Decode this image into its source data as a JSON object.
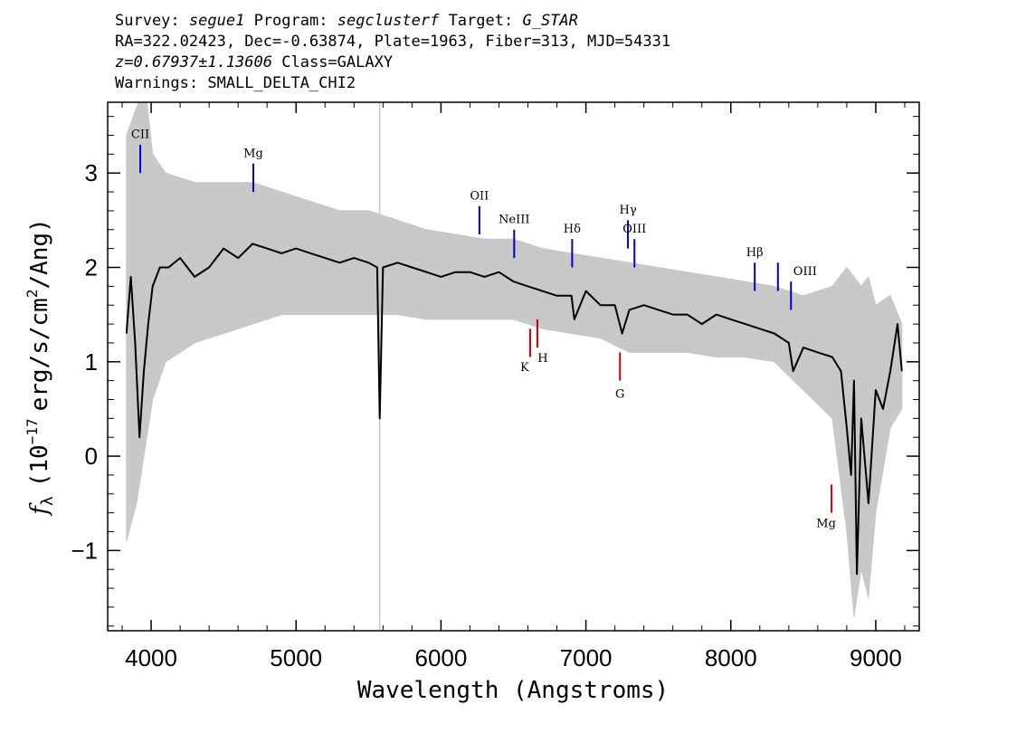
{
  "header": {
    "line1": {
      "survey_label": "Survey:",
      "survey": "segue1",
      "program_label": "Program:",
      "program": "segclusterf",
      "target_label": "Target:",
      "target": "G_STAR"
    },
    "line2": "RA=322.02423, Dec=-0.63874, Plate=1963, Fiber=313, MJD=54331",
    "line3": {
      "redshift": "z=0.67937±1.13606",
      "class": "Class=GALAXY"
    },
    "line4": "Warnings: SMALL_DELTA_CHI2"
  },
  "chart_data": {
    "type": "line",
    "xlabel": "Wavelength (Angstroms)",
    "ylabel": "f_λ (10^-17 erg/s/cm^2/Ang)",
    "ylabel_parts": {
      "f": "f",
      "lambda": "λ",
      "open": "(10",
      "exp": "−17",
      "units": "erg/s/cm",
      "sq": "2",
      "close": "/Ang)"
    },
    "xlim": [
      3700,
      9300
    ],
    "ylim": [
      -1.85,
      3.75
    ],
    "x_ticks": [
      4000,
      5000,
      6000,
      7000,
      8000,
      9000
    ],
    "x_tick_labels": [
      "4000",
      "5000",
      "6000",
      "7000",
      "8000",
      "9000"
    ],
    "y_ticks": [
      -1,
      0,
      1,
      2,
      3
    ],
    "y_tick_labels": [
      "−1",
      "0",
      "1",
      "2",
      "3"
    ],
    "sky_line_x": 5577,
    "series": [
      {
        "role": "flux",
        "color": "#000000",
        "x": [
          3830,
          3860,
          3890,
          3920,
          3950,
          3980,
          4010,
          4060,
          4120,
          4200,
          4300,
          4400,
          4500,
          4600,
          4700,
          4800,
          4900,
          5000,
          5100,
          5200,
          5300,
          5400,
          5500,
          5560,
          5577,
          5600,
          5700,
          5800,
          5900,
          6000,
          6100,
          6200,
          6300,
          6400,
          6500,
          6600,
          6700,
          6800,
          6900,
          6920,
          7000,
          7100,
          7200,
          7250,
          7300,
          7400,
          7500,
          7600,
          7700,
          7800,
          7900,
          8000,
          8100,
          8200,
          8300,
          8400,
          8430,
          8500,
          8600,
          8700,
          8760,
          8800,
          8830,
          8850,
          8870,
          8900,
          8950,
          9000,
          9050,
          9100,
          9150,
          9180
        ],
        "y": [
          1.3,
          1.9,
          1.2,
          0.2,
          0.9,
          1.4,
          1.8,
          2.0,
          2.0,
          2.1,
          1.9,
          2.0,
          2.2,
          2.1,
          2.25,
          2.2,
          2.15,
          2.2,
          2.15,
          2.1,
          2.05,
          2.1,
          2.05,
          2.0,
          0.4,
          2.0,
          2.05,
          2.0,
          1.95,
          1.9,
          1.95,
          1.95,
          1.9,
          1.95,
          1.85,
          1.8,
          1.75,
          1.7,
          1.7,
          1.45,
          1.75,
          1.6,
          1.6,
          1.3,
          1.55,
          1.6,
          1.55,
          1.5,
          1.5,
          1.4,
          1.5,
          1.45,
          1.4,
          1.35,
          1.3,
          1.2,
          0.9,
          1.15,
          1.1,
          1.05,
          0.9,
          0.3,
          -0.2,
          0.8,
          -1.25,
          0.4,
          -0.5,
          0.7,
          0.5,
          0.9,
          1.4,
          0.9
        ]
      },
      {
        "role": "error",
        "color": "#c8c8c8",
        "x": [
          3830,
          3900,
          3960,
          4010,
          4100,
          4300,
          4500,
          4700,
          4900,
          5100,
          5300,
          5500,
          5700,
          5900,
          6100,
          6300,
          6500,
          6700,
          6900,
          7100,
          7300,
          7500,
          7700,
          7900,
          8100,
          8300,
          8500,
          8700,
          8800,
          8850,
          8900,
          8950,
          9000,
          9100,
          9180
        ],
        "upper": [
          3.4,
          3.7,
          3.9,
          3.2,
          3.0,
          2.9,
          2.9,
          2.9,
          2.8,
          2.7,
          2.6,
          2.6,
          2.5,
          2.4,
          2.35,
          2.3,
          2.3,
          2.2,
          2.15,
          2.1,
          2.05,
          2.0,
          1.95,
          1.9,
          1.85,
          1.8,
          1.7,
          1.8,
          2.0,
          1.9,
          1.8,
          1.9,
          1.6,
          1.7,
          1.4
        ],
        "lower": [
          -0.9,
          -0.5,
          0.1,
          0.6,
          1.0,
          1.2,
          1.3,
          1.4,
          1.5,
          1.5,
          1.5,
          1.5,
          1.5,
          1.45,
          1.45,
          1.45,
          1.45,
          1.35,
          1.3,
          1.25,
          1.1,
          1.1,
          1.1,
          1.05,
          1.05,
          1.0,
          0.7,
          0.4,
          -0.8,
          -1.7,
          -1.2,
          -1.5,
          -0.6,
          0.3,
          0.5
        ]
      }
    ],
    "line_markers": [
      {
        "label": "CII",
        "x": 3925,
        "y_top": 3.3,
        "y_bottom": 3.0,
        "label_y": 3.37,
        "color": "#0000cc",
        "type": "emission"
      },
      {
        "label": "Mg",
        "x": 4705,
        "y_top": 3.1,
        "y_bottom": 2.8,
        "label_y": 3.17,
        "color": "#0000cc",
        "type": "emission"
      },
      {
        "label": "OII",
        "x": 6265,
        "y_top": 2.65,
        "y_bottom": 2.35,
        "label_y": 2.72,
        "color": "#0000cc",
        "type": "emission"
      },
      {
        "label": "NeIII",
        "x": 6505,
        "y_top": 2.4,
        "y_bottom": 2.1,
        "label_y": 2.47,
        "color": "#0000cc",
        "type": "emission"
      },
      {
        "label": "Hδ",
        "x": 6905,
        "y_top": 2.3,
        "y_bottom": 2.0,
        "label_y": 2.37,
        "color": "#0000cc",
        "type": "emission"
      },
      {
        "label": "Hγ",
        "x": 7290,
        "y_top": 2.5,
        "y_bottom": 2.2,
        "label_y": 2.57,
        "color": "#0000cc",
        "type": "emission"
      },
      {
        "label": "OIII",
        "x": 7335,
        "y_top": 2.3,
        "y_bottom": 2.0,
        "label_y": 2.37,
        "color": "#0000cc",
        "type": "emission"
      },
      {
        "label": "Hβ",
        "x": 8165,
        "y_top": 2.05,
        "y_bottom": 1.75,
        "label_y": 2.12,
        "color": "#0000cc",
        "type": "emission"
      },
      {
        "label": "OIII",
        "x": 8325,
        "y_top": 2.05,
        "y_bottom": 1.75,
        "label_y": 1.92,
        "color": "#0000cc",
        "type": "emission",
        "label_dx": 30
      },
      {
        "label": "OIII",
        "x": 8415,
        "y_top": 1.85,
        "y_bottom": 1.55,
        "label_y": null,
        "color": "#0000cc",
        "type": "emission"
      },
      {
        "label": "K",
        "x": 6615,
        "y_top": 1.35,
        "y_bottom": 1.05,
        "label_y": 0.9,
        "color": "#cc0000",
        "type": "absorption",
        "label_dx": -6
      },
      {
        "label": "H",
        "x": 6665,
        "y_top": 1.45,
        "y_bottom": 1.15,
        "label_y": 1.0,
        "color": "#cc0000",
        "type": "absorption",
        "label_dx": 6
      },
      {
        "label": "G",
        "x": 7235,
        "y_top": 1.1,
        "y_bottom": 0.8,
        "label_y": 0.62,
        "color": "#cc0000",
        "type": "absorption"
      },
      {
        "label": "Mg",
        "x": 8695,
        "y_top": -0.3,
        "y_bottom": -0.6,
        "label_y": -0.75,
        "color": "#cc0000",
        "type": "absorption",
        "label_dx": -6
      }
    ]
  }
}
